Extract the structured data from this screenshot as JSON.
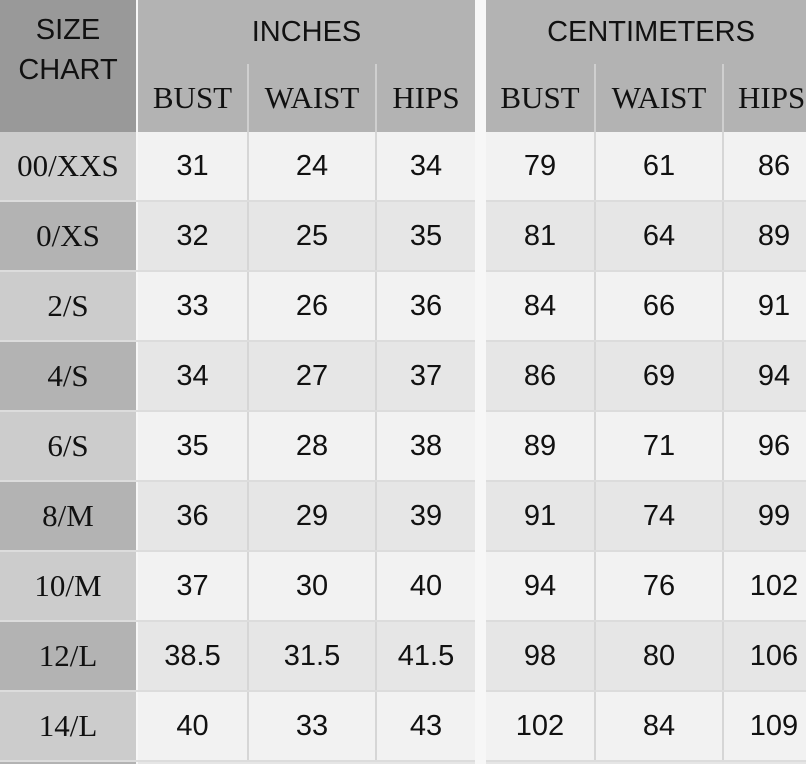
{
  "header": {
    "corner": [
      "SIZE",
      "CHART"
    ],
    "groups": [
      "INCHES",
      "CENTIMETERS"
    ],
    "subheaders": [
      "BUST",
      "WAIST",
      "HIPS"
    ]
  },
  "rows": [
    {
      "size": "00/XXS",
      "inches": [
        "31",
        "24",
        "34"
      ],
      "cm": [
        "79",
        "61",
        "86"
      ]
    },
    {
      "size": "0/XS",
      "inches": [
        "32",
        "25",
        "35"
      ],
      "cm": [
        "81",
        "64",
        "89"
      ]
    },
    {
      "size": "2/S",
      "inches": [
        "33",
        "26",
        "36"
      ],
      "cm": [
        "84",
        "66",
        "91"
      ]
    },
    {
      "size": "4/S",
      "inches": [
        "34",
        "27",
        "37"
      ],
      "cm": [
        "86",
        "69",
        "94"
      ]
    },
    {
      "size": "6/S",
      "inches": [
        "35",
        "28",
        "38"
      ],
      "cm": [
        "89",
        "71",
        "96"
      ]
    },
    {
      "size": "8/M",
      "inches": [
        "36",
        "29",
        "39"
      ],
      "cm": [
        "91",
        "74",
        "99"
      ]
    },
    {
      "size": "10/M",
      "inches": [
        "37",
        "30",
        "40"
      ],
      "cm": [
        "94",
        "76",
        "102"
      ]
    },
    {
      "size": "12/L",
      "inches": [
        "38.5",
        "31.5",
        "41.5"
      ],
      "cm": [
        "98",
        "80",
        "106"
      ]
    },
    {
      "size": "14/L",
      "inches": [
        "40",
        "33",
        "43"
      ],
      "cm": [
        "102",
        "84",
        "109"
      ]
    }
  ],
  "colors": {
    "corner_bg": "#999999",
    "header_bg": "#b3b3b3",
    "size_light": "#cccccc",
    "size_dark": "#b3b3b3",
    "cell_light": "#f2f2f2",
    "cell_dark": "#e6e6e6"
  }
}
